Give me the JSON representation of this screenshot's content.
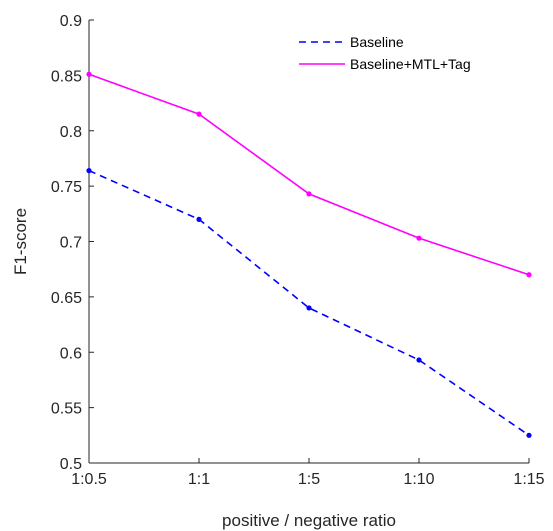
{
  "chart_data": {
    "type": "line",
    "categories": [
      "1:0.5",
      "1:1",
      "1:5",
      "1:10",
      "1:15"
    ],
    "series": [
      {
        "name": "Baseline",
        "values": [
          0.764,
          0.72,
          0.64,
          0.593,
          0.525
        ],
        "color": "#0000ff",
        "line_style": "dashed",
        "marker": "dot"
      },
      {
        "name": "Baseline+MTL+Tag",
        "values": [
          0.851,
          0.815,
          0.743,
          0.703,
          0.67
        ],
        "color": "#ff00ff",
        "line_style": "solid",
        "marker": "dot"
      }
    ],
    "xlabel": "positive / negative ratio",
    "ylabel": "F1-score",
    "ylim": [
      0.5,
      0.9
    ],
    "yticks": [
      "0.5",
      "0.55",
      "0.6",
      "0.65",
      "0.7",
      "0.75",
      "0.8",
      "0.85",
      "0.9"
    ],
    "grid": false,
    "legend_position": "top-right",
    "axis_color": "#262626"
  }
}
